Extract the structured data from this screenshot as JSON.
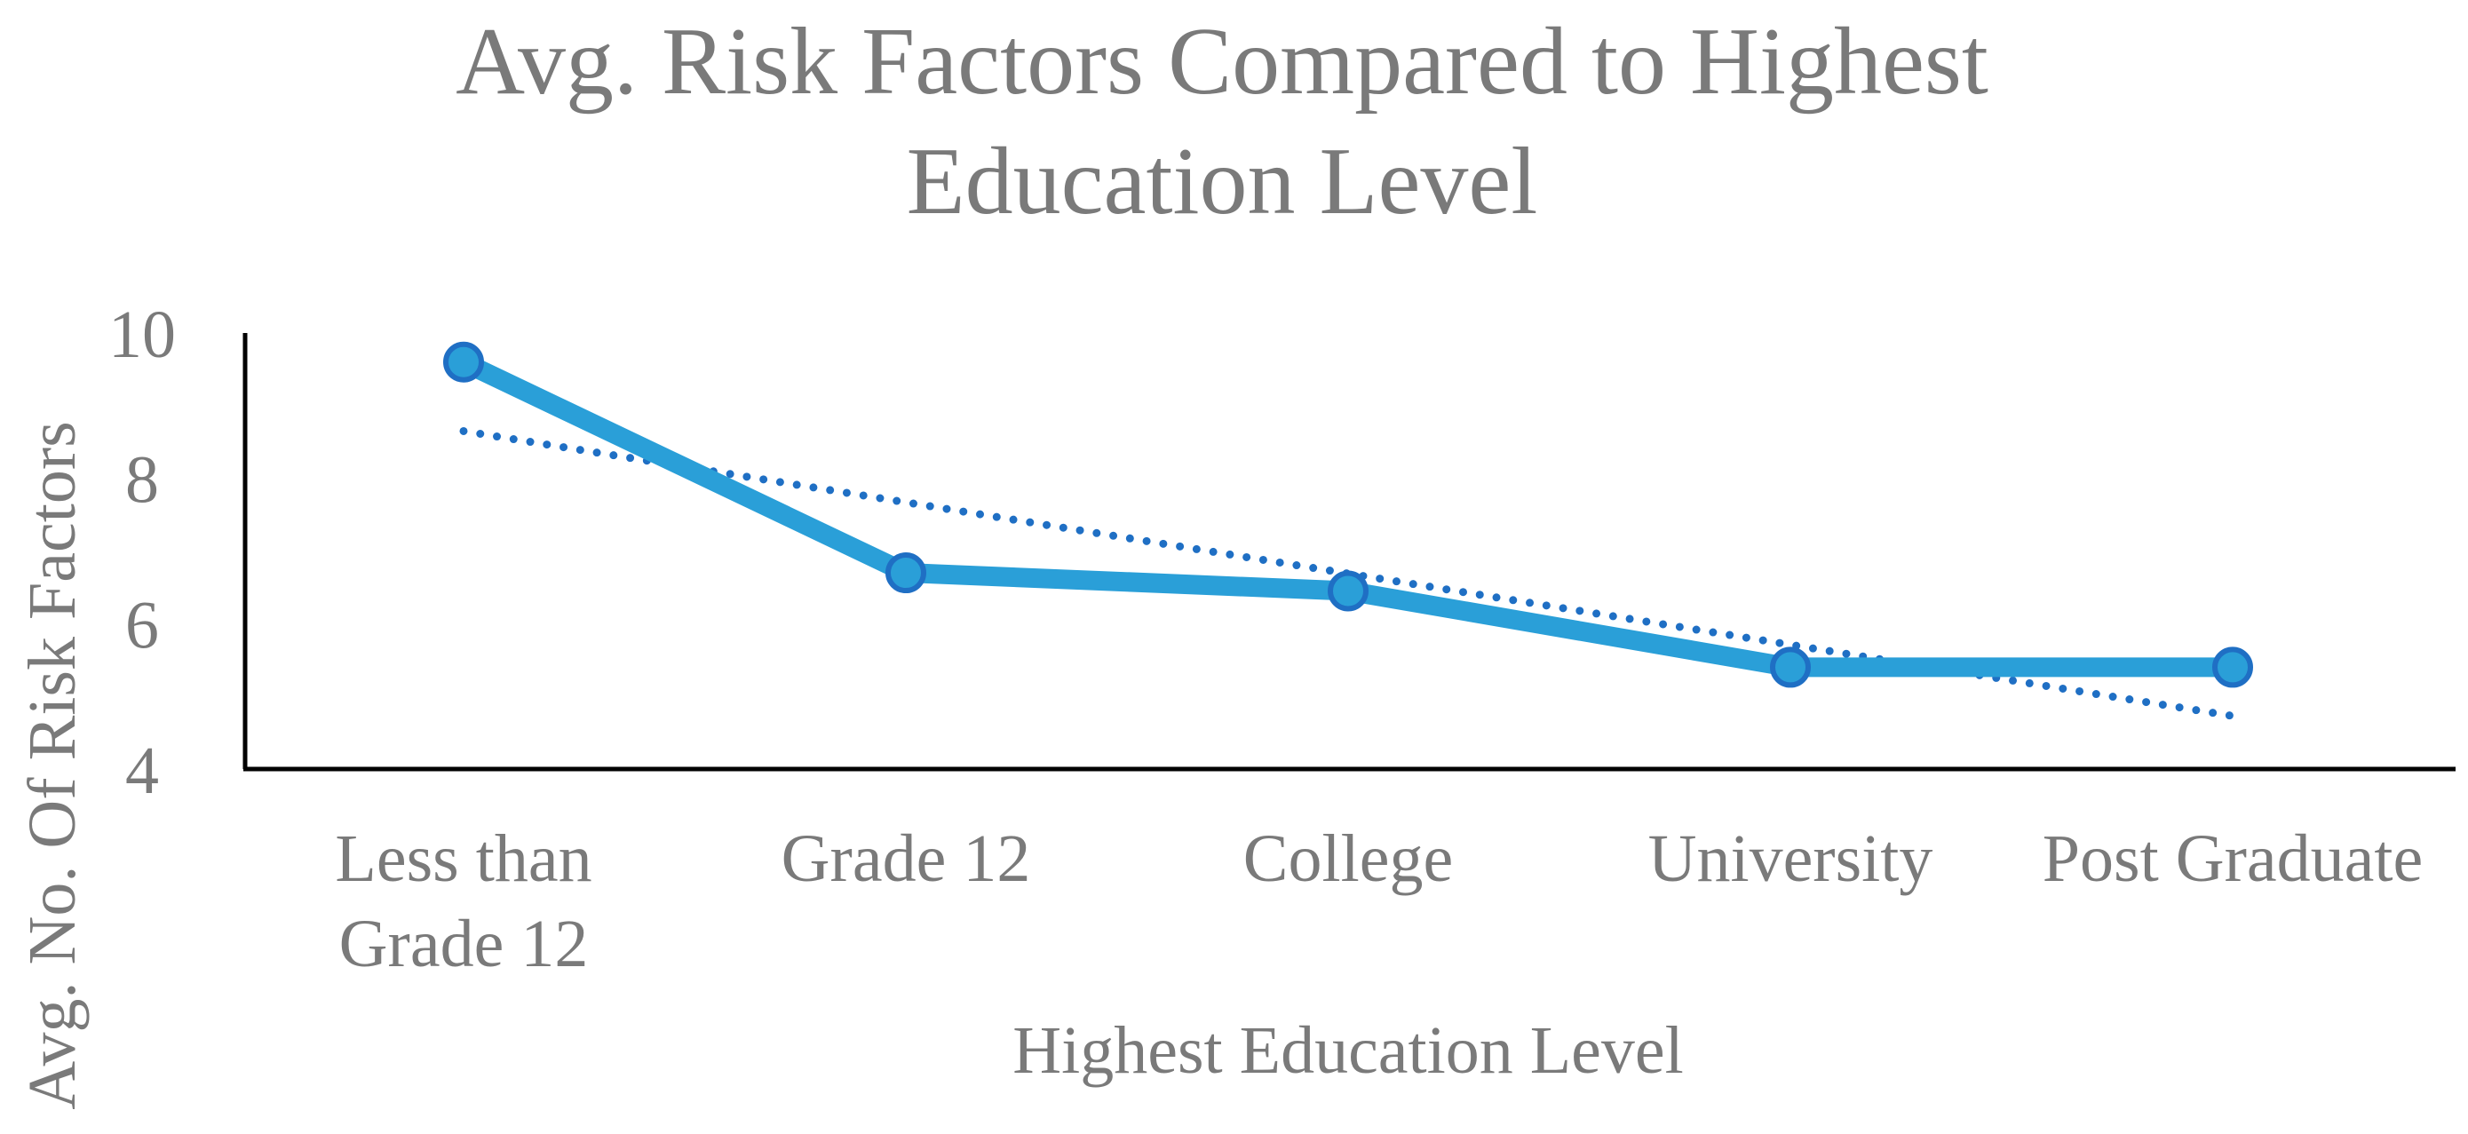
{
  "chart_data": {
    "type": "line",
    "title_lines": [
      "Avg. Risk Factors Compared to Highest",
      "Education Level"
    ],
    "xlabel": "Highest Education Level",
    "ylabel": "Avg. No. Of Risk Factors",
    "categories": [
      [
        "Less than",
        "Grade 12"
      ],
      [
        "Grade 12"
      ],
      [
        "College"
      ],
      [
        "University"
      ],
      [
        "Post Graduate"
      ]
    ],
    "series": [
      {
        "values": [
          9.6,
          6.7,
          6.45,
          5.4,
          5.4
        ],
        "color": "#2a9fd8",
        "marker_edge_color": "#1f6fc4",
        "markers": true
      }
    ],
    "trendline": {
      "type": "linear",
      "values": [
        8.65,
        7.67,
        6.69,
        5.71,
        4.73
      ],
      "color": "#1f6fc4",
      "style": "dotted"
    },
    "ylim": [
      4,
      10
    ],
    "yticks": [
      4,
      6,
      8,
      10
    ],
    "grid": false,
    "legend": "none"
  }
}
